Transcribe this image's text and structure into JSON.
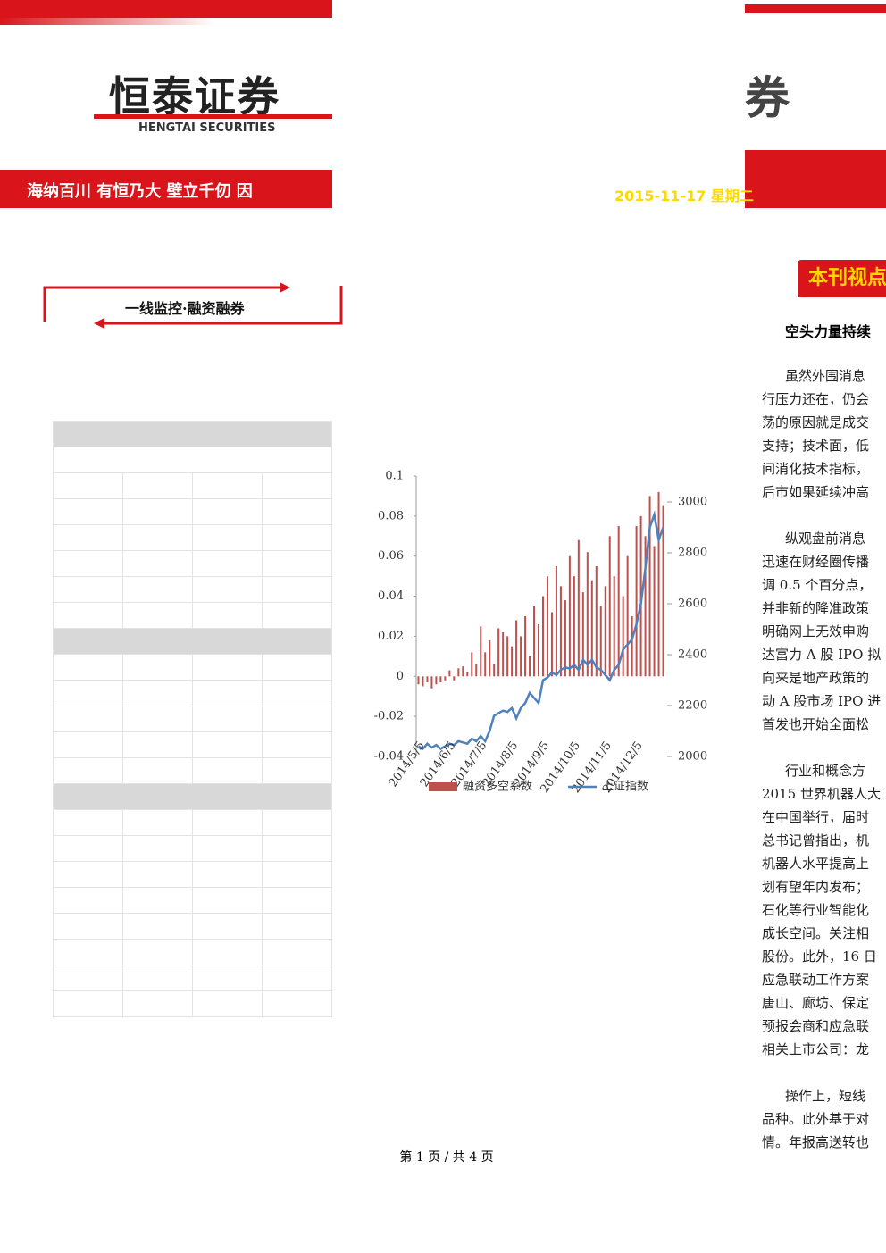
{
  "header": {
    "logo": "恒泰证券",
    "logo_en": "HENGTAI SECURITIES",
    "slogan": "海纳百川 有恒乃大 壁立千仞 因",
    "date": "2015-11-17 星期二",
    "right_logo": "融券"
  },
  "section_title": "一线监控·融资融券",
  "article": {
    "badge": "本刊视点",
    "headline": "空头力量持续",
    "paragraphs": [
      [
        "虽然外围消息",
        "行压力还在，仍会",
        "荡的原因就是成交",
        "支持；技术面，低",
        "间消化技术指标，",
        "后市如果延续冲高"
      ],
      [
        "纵观盘前消息",
        "迅速在财经圈传播",
        "调 0.5 个百分点，",
        "并非新的降准政策",
        "明确网上无效申购",
        "达富力 A 股 IPO 拟",
        "向来是地产政策的",
        "动 A 股市场 IPO 进",
        "首发也开始全面松"
      ],
      [
        "行业和概念方",
        "2015 世界机器人大",
        "在中国举行，届时",
        "总书记曾指出，机",
        "机器人水平提高上",
        "划有望年内发布；",
        "石化等行业智能化",
        "成长空间。关注相",
        "股份。此外，16 日",
        "应急联动工作方案",
        "唐山、廊坊、保定",
        "预报会商和应急联",
        "相关上市公司：龙"
      ],
      [
        "操作上，短线",
        "品种。此外基于对",
        "情。年报高送转也"
      ]
    ]
  },
  "footer": "第 1 页 / 共 4 页",
  "chart_data": {
    "type": "bar_line",
    "categories": [
      "2014/5/5",
      null,
      null,
      null,
      null,
      null,
      null,
      "2014/6/5",
      null,
      null,
      null,
      null,
      null,
      null,
      "2014/7/5",
      null,
      null,
      null,
      null,
      null,
      null,
      "2014/8/5",
      null,
      null,
      null,
      null,
      null,
      null,
      "2014/9/5",
      null,
      null,
      null,
      null,
      null,
      null,
      "2014/10/5",
      null,
      null,
      null,
      null,
      null,
      null,
      "2014/11/5",
      null,
      null,
      null,
      null,
      null,
      null,
      "2014/12/5",
      null,
      null,
      null,
      null,
      null,
      null
    ],
    "series": [
      {
        "name": "融资多空系数",
        "color": "#c0504d",
        "type": "bar",
        "values": [
          -0.004,
          -0.005,
          -0.003,
          -0.006,
          -0.004,
          -0.003,
          -0.002,
          0.003,
          -0.002,
          0.004,
          0.005,
          0.002,
          0.012,
          0.006,
          0.025,
          0.012,
          0.018,
          0.006,
          0.024,
          0.022,
          0.02,
          0.015,
          0.028,
          0.02,
          0.03,
          0.01,
          0.035,
          0.026,
          0.04,
          0.05,
          0.032,
          0.055,
          0.045,
          0.038,
          0.06,
          0.05,
          0.068,
          0.042,
          0.062,
          0.048,
          0.055,
          0.035,
          0.045,
          0.07,
          0.05,
          0.075,
          0.04,
          0.06,
          0.03,
          0.075,
          0.08,
          0.07,
          0.09,
          0.065,
          0.092,
          0.085
        ]
      },
      {
        "name": "上证指数",
        "color": "#4f81bd",
        "type": "line",
        "axis": "y2",
        "values": [
          2040,
          2030,
          2050,
          2035,
          2045,
          2030,
          2040,
          2050,
          2045,
          2060,
          2055,
          2050,
          2070,
          2060,
          2080,
          2060,
          2100,
          2160,
          2170,
          2180,
          2175,
          2190,
          2150,
          2190,
          2210,
          2250,
          2230,
          2210,
          2300,
          2310,
          2330,
          2320,
          2340,
          2350,
          2345,
          2360,
          2340,
          2380,
          2360,
          2380,
          2350,
          2340,
          2320,
          2300,
          2340,
          2360,
          2420,
          2440,
          2460,
          2520,
          2600,
          2740,
          2900,
          2950,
          2850,
          2900
        ]
      }
    ],
    "ylim": [
      -0.04,
      0.1
    ],
    "yticks": [
      -0.04,
      -0.02,
      0,
      0.02,
      0.04,
      0.06,
      0.08,
      0.1
    ],
    "y2lim": [
      2000,
      3000
    ],
    "y2ticks": [
      2000,
      2200,
      2400,
      2600,
      2800,
      3000
    ],
    "legend": "bottom"
  }
}
